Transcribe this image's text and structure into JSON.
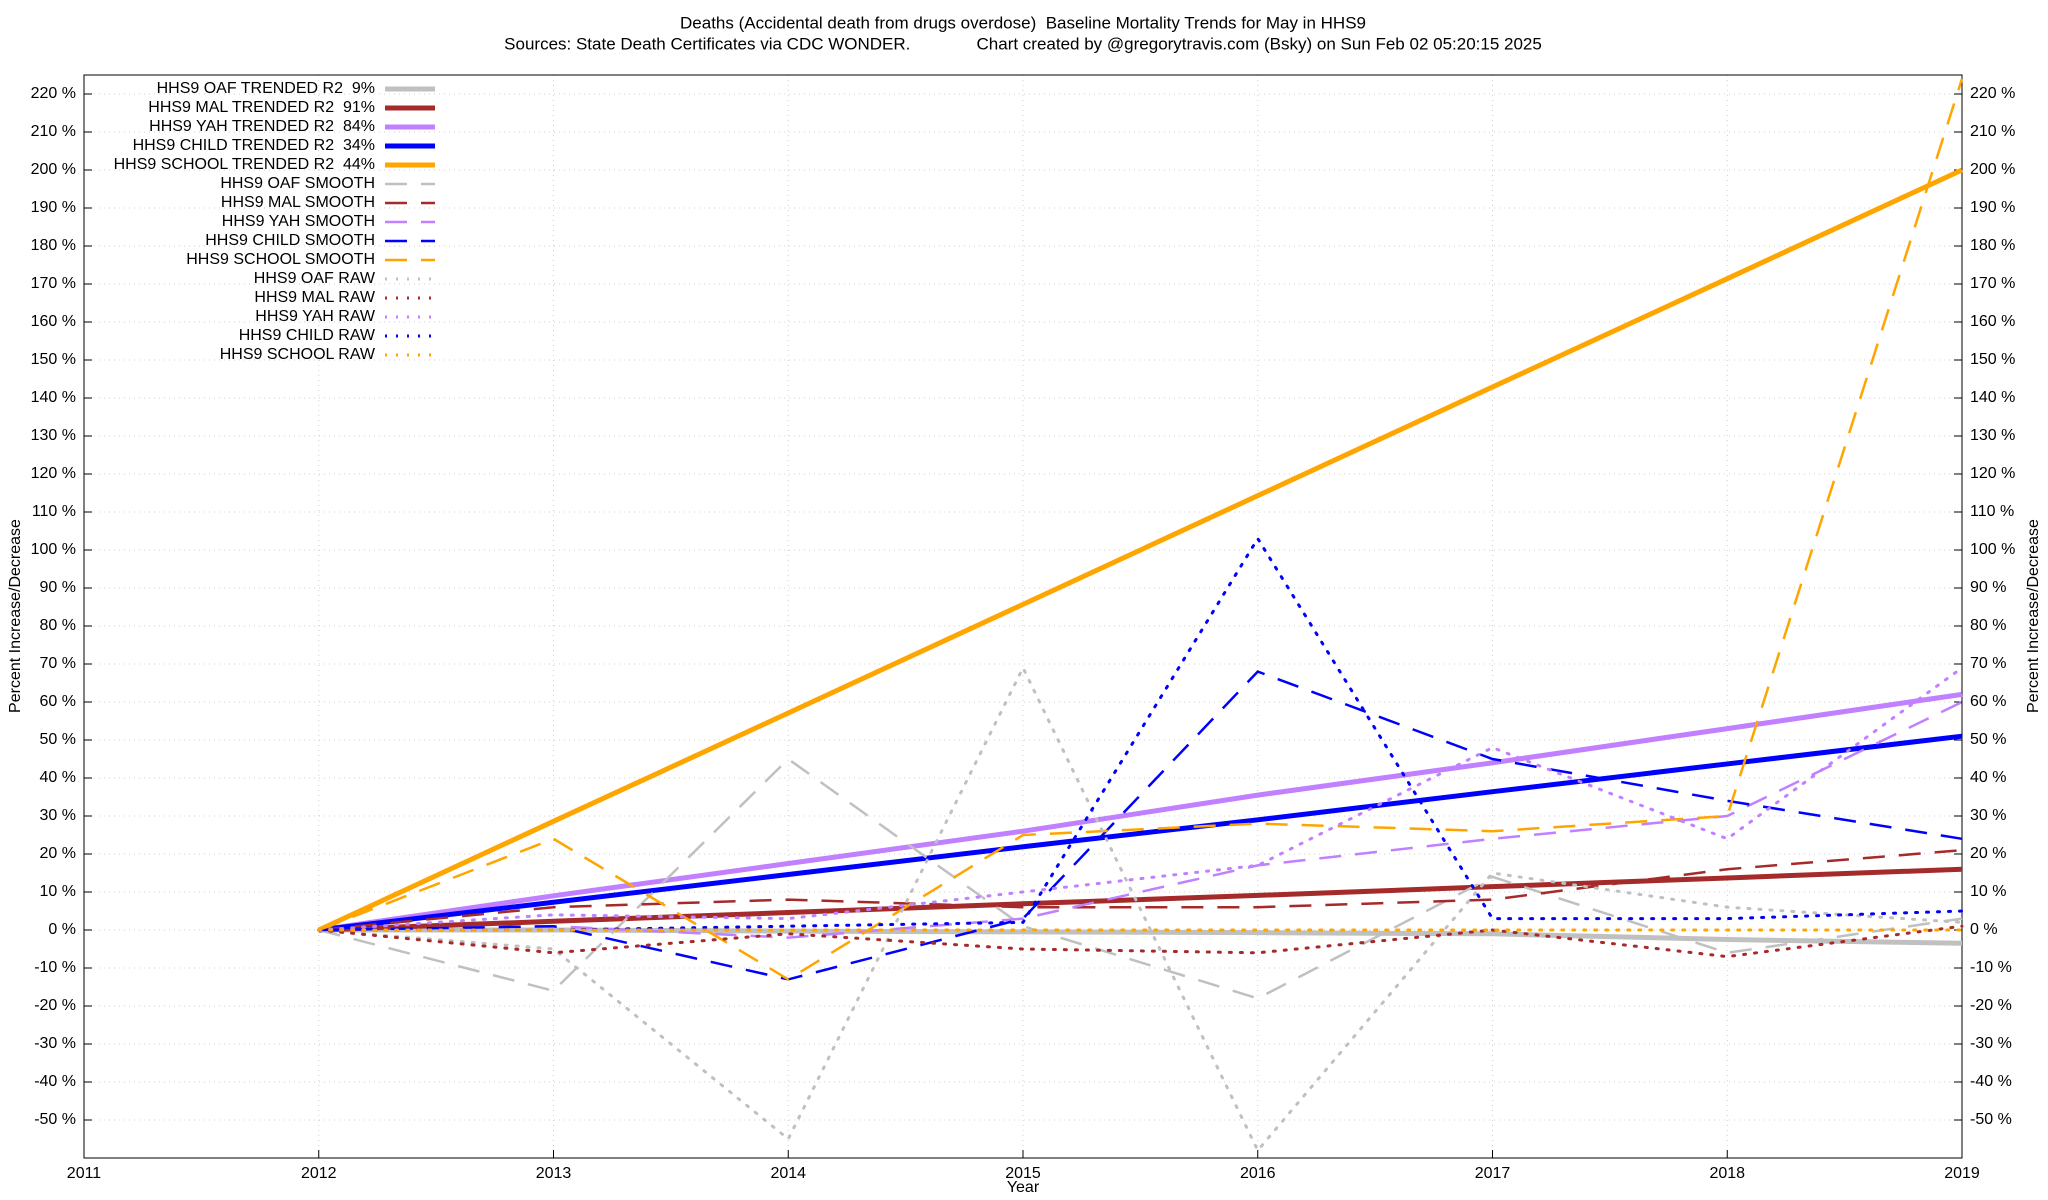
{
  "chart_data": {
    "type": "line",
    "title": "Deaths (Accidental death from drugs overdose)  Baseline Mortality Trends for May in HHS9",
    "subtitle": "Sources: State Death Certificates via CDC WONDER.              Chart created by @gregorytravis.com (Bsky) on Sun Feb 02 05:20:15 2025",
    "x_label": "Year",
    "y_label": "Percent Increase/Decrease",
    "x": [
      2012,
      2013,
      2014,
      2015,
      2016,
      2017,
      2018,
      2019
    ],
    "xlim": [
      2011,
      2019
    ],
    "xticks": [
      2011,
      2012,
      2013,
      2014,
      2015,
      2016,
      2017,
      2018,
      2019
    ],
    "ylim": [
      -60,
      225
    ],
    "yticks": [
      {
        "value": -50,
        "label": "-50 %"
      },
      {
        "value": -40,
        "label": "-40 %"
      },
      {
        "value": -30,
        "label": "-30 %"
      },
      {
        "value": -20,
        "label": "-20 %"
      },
      {
        "value": -10,
        "label": "-10 %"
      },
      {
        "value": 0,
        "label": "0 %"
      },
      {
        "value": 10,
        "label": "10 %"
      },
      {
        "value": 20,
        "label": "20 %"
      },
      {
        "value": 30,
        "label": "30 %"
      },
      {
        "value": 40,
        "label": "40 %"
      },
      {
        "value": 50,
        "label": "50 %"
      },
      {
        "value": 60,
        "label": "60 %"
      },
      {
        "value": 70,
        "label": "70 %"
      },
      {
        "value": 80,
        "label": "80 %"
      },
      {
        "value": 90,
        "label": "90 %"
      },
      {
        "value": 100,
        "label": "100 %"
      },
      {
        "value": 110,
        "label": "110 %"
      },
      {
        "value": 120,
        "label": "120 %"
      },
      {
        "value": 130,
        "label": "130 %"
      },
      {
        "value": 140,
        "label": "140 %"
      },
      {
        "value": 150,
        "label": "150 %"
      },
      {
        "value": 160,
        "label": "160 %"
      },
      {
        "value": 170,
        "label": "170 %"
      },
      {
        "value": 180,
        "label": "180 %"
      },
      {
        "value": 190,
        "label": "190 %"
      },
      {
        "value": 200,
        "label": "200 %"
      },
      {
        "value": 210,
        "label": "210 %"
      },
      {
        "value": 220,
        "label": "220 %"
      }
    ],
    "grid": true,
    "legend": "top-left",
    "series": [
      {
        "name": "HHS9 OAF TRENDED R2  9%",
        "color": "#c0c0c0",
        "style": "solid",
        "values": [
          0,
          0,
          -0.3,
          -0.5,
          -0.7,
          -1,
          -2.5,
          -3.5
        ]
      },
      {
        "name": "HHS9 MAL TRENDED R2  91%",
        "color": "#a52a2a",
        "style": "solid",
        "values": [
          0,
          2.3,
          4.6,
          6.9,
          9.1,
          11.4,
          13.7,
          16
        ]
      },
      {
        "name": "HHS9 YAH TRENDED R2  84%",
        "color": "#c080ff",
        "style": "solid",
        "values": [
          0,
          9,
          17.5,
          26,
          35.5,
          44,
          53,
          62
        ]
      },
      {
        "name": "HHS9 CHILD TRENDED R2  34%",
        "color": "#0000ff",
        "style": "solid",
        "values": [
          0,
          7.3,
          14.6,
          21.9,
          29,
          36.4,
          43.7,
          51
        ]
      },
      {
        "name": "HHS9 SCHOOL TRENDED R2  44%",
        "color": "#ffa500",
        "style": "solid",
        "values": [
          0,
          28.6,
          57.1,
          85.7,
          114.3,
          142.9,
          171.4,
          200
        ]
      },
      {
        "name": "HHS9 OAF SMOOTH",
        "color": "#c0c0c0",
        "style": "dashed",
        "values": [
          0,
          -16,
          45,
          1,
          -18,
          14,
          -6,
          3
        ]
      },
      {
        "name": "HHS9 MAL SMOOTH",
        "color": "#a52a2a",
        "style": "dashed",
        "values": [
          0,
          6,
          8,
          6,
          6,
          8,
          16,
          21
        ]
      },
      {
        "name": "HHS9 YAH SMOOTH",
        "color": "#c080ff",
        "style": "dashed",
        "values": [
          0,
          1,
          -2,
          3,
          17,
          24,
          30,
          60
        ]
      },
      {
        "name": "HHS9 CHILD SMOOTH",
        "color": "#0000ff",
        "style": "dashed",
        "values": [
          0,
          1,
          -13,
          3,
          68,
          45,
          34,
          24
        ]
      },
      {
        "name": "HHS9 SCHOOL SMOOTH",
        "color": "#ffa500",
        "style": "dashed",
        "values": [
          0,
          24,
          -13,
          25,
          28,
          26,
          30,
          224
        ]
      },
      {
        "name": "HHS9 OAF RAW",
        "color": "#c0c0c0",
        "style": "dotted",
        "values": [
          0,
          -5,
          -55,
          69,
          -58,
          15,
          6,
          2
        ]
      },
      {
        "name": "HHS9 MAL RAW",
        "color": "#a52a2a",
        "style": "dotted",
        "values": [
          0,
          -6,
          -1,
          -5,
          -6,
          0,
          -7,
          1
        ]
      },
      {
        "name": "HHS9 YAH RAW",
        "color": "#c080ff",
        "style": "dotted",
        "values": [
          0,
          4,
          3,
          10,
          17,
          48,
          24,
          69
        ]
      },
      {
        "name": "HHS9 CHILD RAW",
        "color": "#0000ff",
        "style": "dotted",
        "values": [
          0,
          0,
          1,
          2,
          103,
          3,
          3,
          5
        ]
      },
      {
        "name": "HHS9 SCHOOL RAW",
        "color": "#ffa500",
        "style": "dotted",
        "values": [
          0,
          0,
          0,
          0,
          0,
          0,
          0,
          0
        ]
      }
    ]
  }
}
